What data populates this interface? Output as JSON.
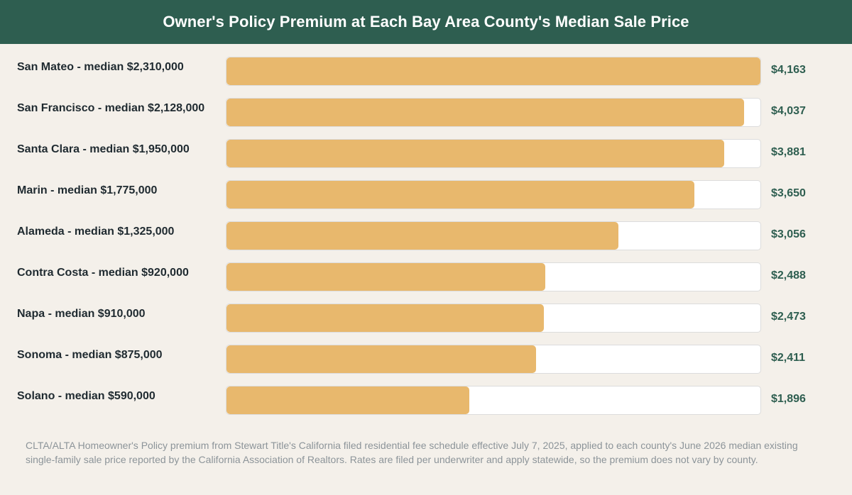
{
  "header": {
    "title": "Owner's Policy Premium at Each Bay Area County's Median Sale Price"
  },
  "colors": {
    "header_bg": "#2e5e50",
    "bar_fill": "#e8b86d",
    "value_text": "#2e5e50",
    "page_bg": "#f4f0ea"
  },
  "chart_data": {
    "type": "bar",
    "orientation": "horizontal",
    "title": "Owner's Policy Premium at Each Bay Area County's Median Sale Price",
    "xlim": [
      0,
      4163
    ],
    "categories": [
      "San Mateo - median $2,310,000",
      "San Francisco - median $2,128,000",
      "Santa Clara - median $1,950,000",
      "Marin - median $1,775,000",
      "Alameda - median $1,325,000",
      "Contra Costa - median $920,000",
      "Napa - median $910,000",
      "Sonoma - median $875,000",
      "Solano - median $590,000"
    ],
    "values": [
      4163,
      4037,
      3881,
      3650,
      3056,
      2488,
      2473,
      2411,
      1896
    ],
    "value_labels": [
      "$4,163",
      "$4,037",
      "$3,881",
      "$3,650",
      "$3,056",
      "$2,488",
      "$2,473",
      "$2,411",
      "$1,896"
    ]
  },
  "footnote": "CLTA/ALTA Homeowner's Policy premium from Stewart Title's California filed residential fee schedule effective July 7, 2025, applied to each county's June 2026 median existing single-family sale price reported by the California Association of Realtors. Rates are filed per underwriter and apply statewide, so the premium does not vary by county."
}
